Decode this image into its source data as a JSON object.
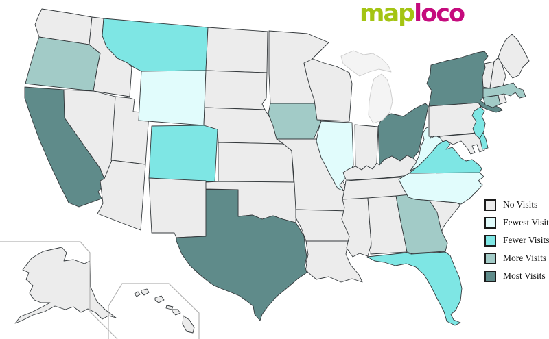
{
  "logo": {
    "text_green": "map",
    "text_pink": "loco",
    "green_color": "#a4c413",
    "pink_color": "#c50b7d"
  },
  "legend": {
    "items": [
      {
        "label": "No Visits",
        "level": "no",
        "color": "#ececec"
      },
      {
        "label": "Fewest Visits",
        "level": "fewest",
        "color": "#e1fcfc"
      },
      {
        "label": "Fewer Visits",
        "level": "fewer",
        "color": "#7ee6e4"
      },
      {
        "label": "More Visits",
        "level": "more",
        "color": "#a2cbc7"
      },
      {
        "label": "Most Visits",
        "level": "most",
        "color": "#5f8b8a"
      }
    ]
  },
  "map": {
    "background": "#ffffff",
    "state_border_color": "#33383b",
    "inset_border_color": "#b3b3b3",
    "muted_state_fill": "#f4f4f4",
    "muted_state_border": "#cccccc",
    "levels": {
      "no": "#ececec",
      "fewest": "#e1fcfc",
      "fewer": "#7ee6e4",
      "more": "#a2cbc7",
      "most": "#5f8b8a"
    },
    "states": [
      {
        "id": "WA",
        "name": "Washington",
        "level": "no"
      },
      {
        "id": "OR",
        "name": "Oregon",
        "level": "more"
      },
      {
        "id": "CA",
        "name": "California",
        "level": "most"
      },
      {
        "id": "ID",
        "name": "Idaho",
        "level": "no"
      },
      {
        "id": "NV",
        "name": "Nevada",
        "level": "no"
      },
      {
        "id": "UT",
        "name": "Utah",
        "level": "no"
      },
      {
        "id": "AZ",
        "name": "Arizona",
        "level": "no"
      },
      {
        "id": "MT",
        "name": "Montana",
        "level": "fewer"
      },
      {
        "id": "WY",
        "name": "Wyoming",
        "level": "fewest"
      },
      {
        "id": "CO",
        "name": "Colorado",
        "level": "fewer"
      },
      {
        "id": "NM",
        "name": "New Mexico",
        "level": "no"
      },
      {
        "id": "ND",
        "name": "North Dakota",
        "level": "no"
      },
      {
        "id": "SD",
        "name": "South Dakota",
        "level": "no"
      },
      {
        "id": "NE",
        "name": "Nebraska",
        "level": "no"
      },
      {
        "id": "KS",
        "name": "Kansas",
        "level": "no"
      },
      {
        "id": "OK",
        "name": "Oklahoma",
        "level": "no"
      },
      {
        "id": "TX",
        "name": "Texas",
        "level": "most"
      },
      {
        "id": "MN",
        "name": "Minnesota",
        "level": "no"
      },
      {
        "id": "IA",
        "name": "Iowa",
        "level": "more"
      },
      {
        "id": "MO",
        "name": "Missouri",
        "level": "no"
      },
      {
        "id": "AR",
        "name": "Arkansas",
        "level": "no"
      },
      {
        "id": "LA",
        "name": "Louisiana",
        "level": "no"
      },
      {
        "id": "WI",
        "name": "Wisconsin",
        "level": "no"
      },
      {
        "id": "IL",
        "name": "Illinois",
        "level": "fewest"
      },
      {
        "id": "IN",
        "name": "Indiana",
        "level": "no"
      },
      {
        "id": "OH",
        "name": "Ohio",
        "level": "most"
      },
      {
        "id": "MI",
        "name": "Michigan",
        "level": "no",
        "muted": true
      },
      {
        "id": "KY",
        "name": "Kentucky",
        "level": "no"
      },
      {
        "id": "TN",
        "name": "Tennessee",
        "level": "no"
      },
      {
        "id": "MS",
        "name": "Mississippi",
        "level": "no"
      },
      {
        "id": "AL",
        "name": "Alabama",
        "level": "no"
      },
      {
        "id": "GA",
        "name": "Georgia",
        "level": "more"
      },
      {
        "id": "SC",
        "name": "South Carolina",
        "level": "no"
      },
      {
        "id": "FL",
        "name": "Florida",
        "level": "fewer"
      },
      {
        "id": "NC",
        "name": "North Carolina",
        "level": "fewest"
      },
      {
        "id": "VA",
        "name": "Virginia",
        "level": "fewer"
      },
      {
        "id": "WV",
        "name": "West Virginia",
        "level": "fewest"
      },
      {
        "id": "MD",
        "name": "Maryland",
        "level": "no"
      },
      {
        "id": "DE",
        "name": "Delaware",
        "level": "fewer"
      },
      {
        "id": "PA",
        "name": "Pennsylvania",
        "level": "no"
      },
      {
        "id": "NJ",
        "name": "New Jersey",
        "level": "fewer"
      },
      {
        "id": "NY",
        "name": "New York",
        "level": "most"
      },
      {
        "id": "CT",
        "name": "Connecticut",
        "level": "more"
      },
      {
        "id": "RI",
        "name": "Rhode Island",
        "level": "no"
      },
      {
        "id": "MA",
        "name": "Massachusetts",
        "level": "more"
      },
      {
        "id": "VT",
        "name": "Vermont",
        "level": "no"
      },
      {
        "id": "NH",
        "name": "New Hampshire",
        "level": "no"
      },
      {
        "id": "ME",
        "name": "Maine",
        "level": "no"
      },
      {
        "id": "AK",
        "name": "Alaska",
        "level": "no"
      },
      {
        "id": "HI",
        "name": "Hawaii",
        "level": "no"
      }
    ]
  }
}
